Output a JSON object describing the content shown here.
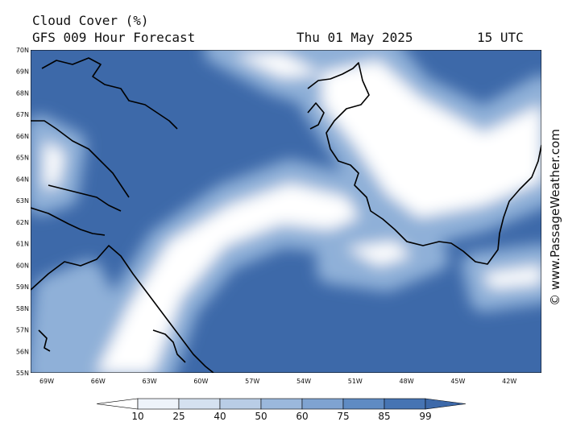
{
  "header": {
    "title": "Cloud Cover (%)",
    "subtitle": "GFS 009 Hour Forecast",
    "date": "Thu 01 May 2025",
    "time": "15 UTC"
  },
  "map": {
    "lat_labels": [
      "70N",
      "69N",
      "68N",
      "67N",
      "66N",
      "65N",
      "64N",
      "63N",
      "62N",
      "61N",
      "60N",
      "59N",
      "58N",
      "57N",
      "56N",
      "55N"
    ],
    "lon_labels": [
      "69W",
      "66W",
      "63W",
      "60W",
      "57W",
      "54W",
      "51W",
      "48W",
      "45W",
      "42W"
    ]
  },
  "colorbar": {
    "labels": [
      "10",
      "25",
      "40",
      "50",
      "60",
      "75",
      "85",
      "99"
    ],
    "colors": [
      "#ffffff",
      "#eef3fa",
      "#d5e1f0",
      "#b9cde6",
      "#9bb8dc",
      "#7fa3d1",
      "#5f8bc3",
      "#4674b3",
      "#3d69a9"
    ]
  },
  "watermark": "© www.PassageWeather.com"
}
